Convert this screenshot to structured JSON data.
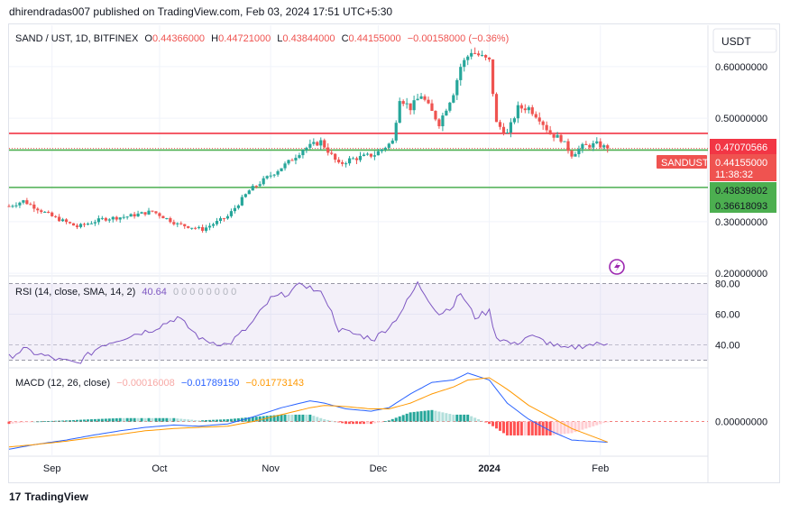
{
  "header": {
    "published_line": "dhirendradas007 published on TradingView.com, Feb 03, 2024 17:51 UTC+5:30"
  },
  "footer": {
    "logo_glyph": "17",
    "brand": "TradingView"
  },
  "currency_button": "USDT",
  "legend": {
    "symbol": "SAND / UST, 1D, BITFINEX",
    "open_label": "O",
    "open": "0.44366000",
    "high_label": "H",
    "high": "0.44721000",
    "low_label": "L",
    "low": "0.43844000",
    "close_label": "C",
    "close": "0.44155000",
    "change": "−0.00158000 (−0.36%)"
  },
  "rsi_legend": {
    "label": "RSI (14, close, SMA, 14, 2)",
    "value": "40.64",
    "extra": "0 0 0 0 0 0 0 0"
  },
  "macd_legend": {
    "label": "MACD (12, 26, close)",
    "hist": "−0.00016008",
    "macd": "−0.01789150",
    "signal": "−0.01773143"
  },
  "colors": {
    "up": "#26a69a",
    "down": "#ef5350",
    "red_line": "#f23645",
    "green_line": "#4caf50",
    "rsi": "#7e57c2",
    "macd": "#2962ff",
    "signal": "#ff9800"
  },
  "price_axis": {
    "ticks": [
      "0.60000000",
      "0.50000000",
      "0.30000000",
      "0.20000000"
    ],
    "tags": {
      "resistance": "0.47070566",
      "last": "0.44155000",
      "symbol": "SANDUST",
      "countdown": "11:38:32",
      "support_top": "0.43839802",
      "support_bottom": "0.36618093"
    }
  },
  "rsi_axis": {
    "ticks": [
      "80.00",
      "60.00",
      "40.00"
    ]
  },
  "macd_axis": {
    "ticks": [
      "0.00000000"
    ]
  },
  "time_axis": [
    "Sep",
    "Oct",
    "Nov",
    "Dec",
    "2024",
    "Feb"
  ],
  "chart_data": {
    "type": "candlestick",
    "symbol": "SAND / UST",
    "timeframe": "1D",
    "exchange": "BITFINEX",
    "x_range": [
      "2023-08-20",
      "2024-02-03"
    ],
    "price_range": [
      0.195,
      0.68
    ],
    "horizontal_levels": [
      {
        "value": 0.47070566,
        "color": "#f23645"
      },
      {
        "value": 0.43839802,
        "color": "#4caf50"
      },
      {
        "value": 0.36618093,
        "color": "#4caf50"
      }
    ],
    "price_anchors": {
      "dates": [
        "2023-08-20",
        "2023-08-24",
        "2023-09-01",
        "2023-09-08",
        "2023-09-15",
        "2023-09-22",
        "2023-09-29",
        "2023-10-06",
        "2023-10-13",
        "2023-10-20",
        "2023-10-26",
        "2023-11-01",
        "2023-11-06",
        "2023-11-10",
        "2023-11-15",
        "2023-11-20",
        "2023-11-23",
        "2023-11-30",
        "2023-12-05",
        "2023-12-07",
        "2023-12-10",
        "2023-12-13",
        "2023-12-18",
        "2023-12-22",
        "2023-12-24",
        "2023-12-27",
        "2024-01-01",
        "2024-01-03",
        "2024-01-06",
        "2024-01-09",
        "2024-01-12",
        "2024-01-15",
        "2024-01-18",
        "2024-01-21",
        "2024-01-24",
        "2024-01-27",
        "2024-01-31",
        "2024-02-03"
      ],
      "close": [
        0.33,
        0.34,
        0.31,
        0.29,
        0.305,
        0.31,
        0.32,
        0.295,
        0.285,
        0.31,
        0.36,
        0.39,
        0.415,
        0.44,
        0.455,
        0.41,
        0.42,
        0.43,
        0.455,
        0.54,
        0.52,
        0.545,
        0.49,
        0.55,
        0.6,
        0.63,
        0.61,
        0.49,
        0.47,
        0.52,
        0.52,
        0.5,
        0.47,
        0.46,
        0.43,
        0.445,
        0.45,
        0.4416
      ]
    },
    "rsi": {
      "range": [
        25,
        85
      ],
      "dates": [
        "2023-08-20",
        "2023-08-24",
        "2023-09-03",
        "2023-09-08",
        "2023-09-15",
        "2023-09-24",
        "2023-09-29",
        "2023-10-06",
        "2023-10-13",
        "2023-10-20",
        "2023-10-26",
        "2023-11-01",
        "2023-11-06",
        "2023-11-10",
        "2023-11-16",
        "2023-11-20",
        "2023-11-26",
        "2023-11-30",
        "2023-12-05",
        "2023-12-08",
        "2023-12-12",
        "2023-12-18",
        "2023-12-22",
        "2023-12-24",
        "2023-12-28",
        "2024-01-01",
        "2024-01-03",
        "2024-01-08",
        "2024-01-12",
        "2024-01-18",
        "2024-01-22",
        "2024-01-28",
        "2024-02-03"
      ],
      "values": [
        32,
        37,
        30,
        28,
        40,
        47,
        50,
        58,
        43,
        40,
        52,
        70,
        74,
        80,
        72,
        50,
        46,
        44,
        54,
        64,
        80,
        60,
        66,
        74,
        58,
        62,
        45,
        40,
        46,
        41,
        37,
        40,
        40.64
      ]
    },
    "macd": {
      "dates": [
        "2023-08-20",
        "2023-08-27",
        "2023-09-05",
        "2023-09-12",
        "2023-09-20",
        "2023-09-27",
        "2023-10-05",
        "2023-10-12",
        "2023-10-20",
        "2023-10-27",
        "2023-11-04",
        "2023-11-12",
        "2023-11-16",
        "2023-11-22",
        "2023-11-29",
        "2023-12-04",
        "2023-12-10",
        "2023-12-16",
        "2023-12-22",
        "2023-12-26",
        "2024-01-01",
        "2024-01-06",
        "2024-01-12",
        "2024-01-18",
        "2024-01-24",
        "2024-02-03"
      ],
      "macd": [
        -0.024,
        -0.02,
        -0.016,
        -0.012,
        -0.008,
        -0.005,
        -0.003,
        -0.004,
        -0.002,
        0.004,
        0.012,
        0.018,
        0.016,
        0.011,
        0.009,
        0.012,
        0.024,
        0.034,
        0.036,
        0.042,
        0.036,
        0.016,
        0.002,
        -0.008,
        -0.016,
        -0.0179
      ],
      "signal": [
        -0.022,
        -0.02,
        -0.017,
        -0.014,
        -0.011,
        -0.008,
        -0.006,
        -0.005,
        -0.004,
        0.0,
        0.006,
        0.012,
        0.014,
        0.013,
        0.011,
        0.011,
        0.016,
        0.024,
        0.03,
        0.036,
        0.038,
        0.028,
        0.014,
        0.004,
        -0.006,
        -0.0177
      ],
      "range": [
        -0.03,
        0.045
      ]
    }
  }
}
